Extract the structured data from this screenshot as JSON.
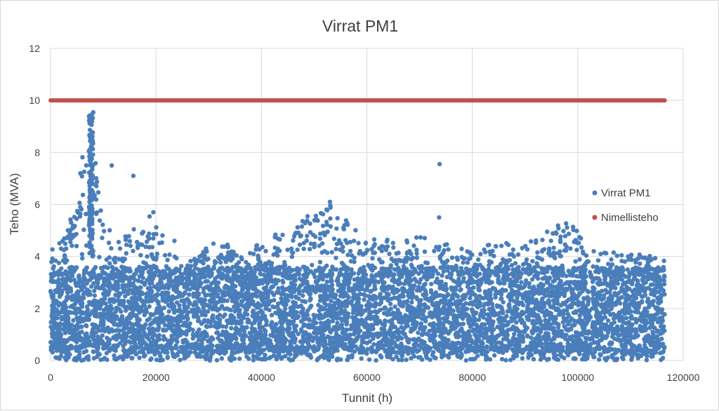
{
  "chart_data": {
    "type": "scatter",
    "title": "Virrat PM1",
    "xlabel": "Tunnit (h)",
    "ylabel": "Teho (MVA)",
    "xlim": [
      0,
      120000
    ],
    "ylim": [
      0,
      12
    ],
    "x_ticks": [
      "0",
      "20000",
      "40000",
      "60000",
      "80000",
      "100000",
      "120000"
    ],
    "y_ticks": [
      "0",
      "2",
      "4",
      "6",
      "8",
      "10",
      "12"
    ],
    "grid": true,
    "legend_position": "right",
    "series": [
      {
        "name": "Virrat PM1",
        "color": "#4a7ebb",
        "x_range": [
          0,
          116500
        ],
        "typical_range": [
          0.3,
          3.6
        ],
        "envelope": [
          {
            "x": 0,
            "max": 4.4
          },
          {
            "x": 3000,
            "max": 4.9
          },
          {
            "x": 7500,
            "max": 9.6
          },
          {
            "x": 10000,
            "max": 5.1
          },
          {
            "x": 15000,
            "max": 4.9
          },
          {
            "x": 19000,
            "max": 5.7
          },
          {
            "x": 25000,
            "max": 3.6
          },
          {
            "x": 32000,
            "max": 4.7
          },
          {
            "x": 36000,
            "max": 4.1
          },
          {
            "x": 45000,
            "max": 5.1
          },
          {
            "x": 53000,
            "max": 6.1
          },
          {
            "x": 58000,
            "max": 5.0
          },
          {
            "x": 65000,
            "max": 4.6
          },
          {
            "x": 71000,
            "max": 4.8
          },
          {
            "x": 74000,
            "max": 4.5
          },
          {
            "x": 80000,
            "max": 4.4
          },
          {
            "x": 91000,
            "max": 4.6
          },
          {
            "x": 98000,
            "max": 5.4
          },
          {
            "x": 103000,
            "max": 4.3
          },
          {
            "x": 110000,
            "max": 4.1
          },
          {
            "x": 116500,
            "max": 4.0
          }
        ],
        "outliers": [
          {
            "x": 11600,
            "y": 7.5
          },
          {
            "x": 15700,
            "y": 7.1
          },
          {
            "x": 73800,
            "y": 7.55
          },
          {
            "x": 73700,
            "y": 5.5
          },
          {
            "x": 53000,
            "y": 6.1
          },
          {
            "x": 19500,
            "y": 5.7
          },
          {
            "x": 23500,
            "y": 4.6
          },
          {
            "x": 2000,
            "y": 4.3
          }
        ]
      },
      {
        "name": "Nimellisteho",
        "color": "#c0504d",
        "x_range": [
          0,
          116500
        ],
        "value": 10
      }
    ]
  }
}
